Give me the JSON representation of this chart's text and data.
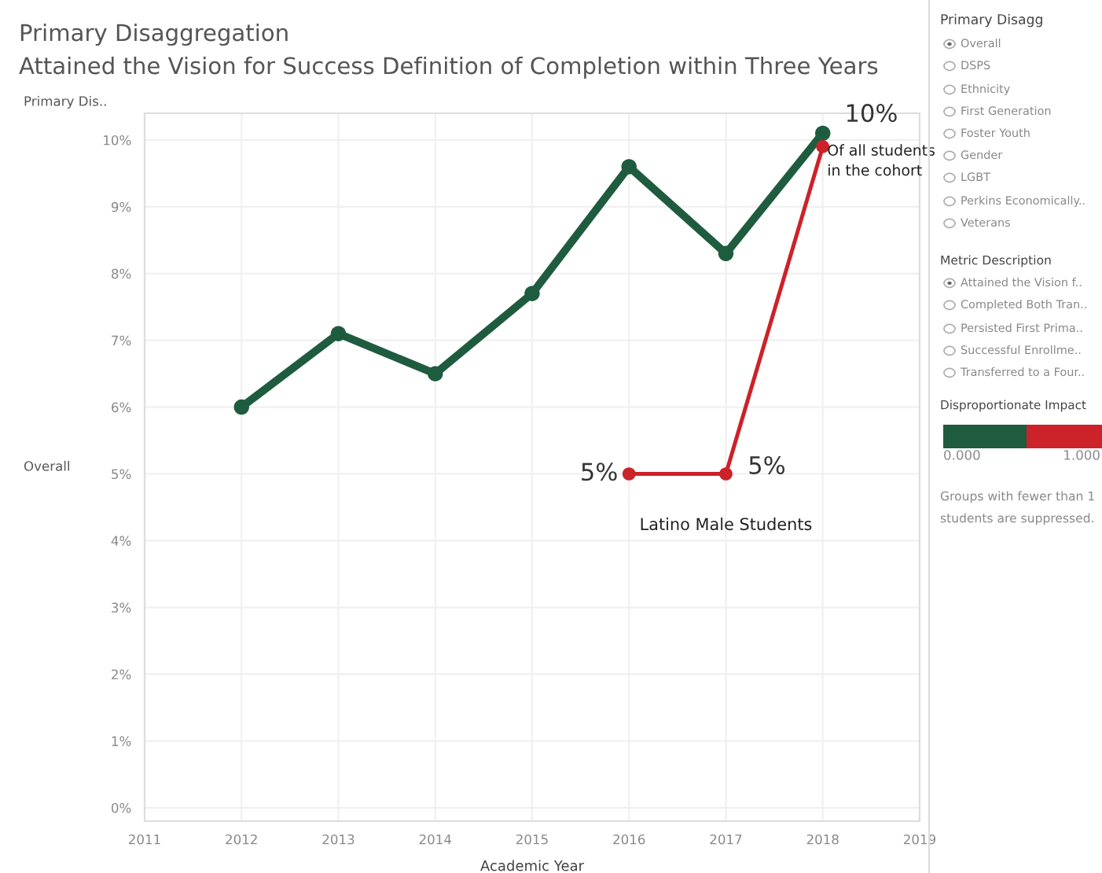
{
  "chart_data": {
    "type": "line",
    "title": "Primary Disaggregation",
    "subtitle": "Attained the Vision for Success Definition of Completion within Three Years",
    "xlabel": "Academic Year",
    "x": [
      2012,
      2013,
      2014,
      2015,
      2016,
      2017,
      2018
    ],
    "series": [
      {
        "color": "#1f5c3f",
        "values": [
          6.0,
          7.1,
          6.5,
          7.7,
          9.6,
          8.3,
          10.1
        ],
        "value_labels": [
          null,
          null,
          null,
          null,
          null,
          null,
          "10%"
        ]
      },
      {
        "color": "#cc2229",
        "x": [
          2016,
          2017,
          2018
        ],
        "values": [
          5.0,
          5.0,
          9.9
        ],
        "value_labels": [
          "5%",
          "5%",
          null
        ]
      }
    ],
    "xlim": [
      2011,
      2019
    ],
    "xticks": [
      2011,
      2012,
      2013,
      2014,
      2015,
      2016,
      2017,
      2018,
      2019
    ],
    "ylim": [
      -0.2,
      10.4
    ],
    "yticks": [
      {
        "value": 0,
        "label": "0%"
      },
      {
        "value": 1,
        "label": "1%"
      },
      {
        "value": 2,
        "label": "2%"
      },
      {
        "value": 3,
        "label": "3%"
      },
      {
        "value": 4,
        "label": "4%"
      },
      {
        "value": 5,
        "label": "5%"
      },
      {
        "value": 6,
        "label": "6%"
      },
      {
        "value": 7,
        "label": "7%"
      },
      {
        "value": 8,
        "label": "8%"
      },
      {
        "value": 9,
        "label": "9%"
      },
      {
        "value": 10,
        "label": "10%"
      }
    ],
    "grid": true,
    "marker": "circle",
    "line_style": "solid",
    "legend": false,
    "annotations": [
      {
        "text": "Of all students\nin the cohort",
        "x": 2018,
        "y": 10.1
      },
      {
        "text": "Latino Male Students",
        "x": 2017,
        "y": 5.0
      },
      "Primary Dis..",
      "Overall",
      "Primary Disagg",
      "Overall",
      "DSPS",
      "Ethnicity",
      "First Generation",
      "Foster Youth",
      "Gender",
      "LGBT",
      "Perkins Economically..",
      "Veterans",
      "Metric Description",
      "Attained the Vision f..",
      "Completed Both Tran..",
      "Persisted First Prima..",
      "Successful Enrollme..",
      "Transferred to a Four..",
      "Disproportionate Impact",
      "0.000",
      "1.000",
      "Groups with fewer than 1",
      "students are suppressed."
    ]
  }
}
